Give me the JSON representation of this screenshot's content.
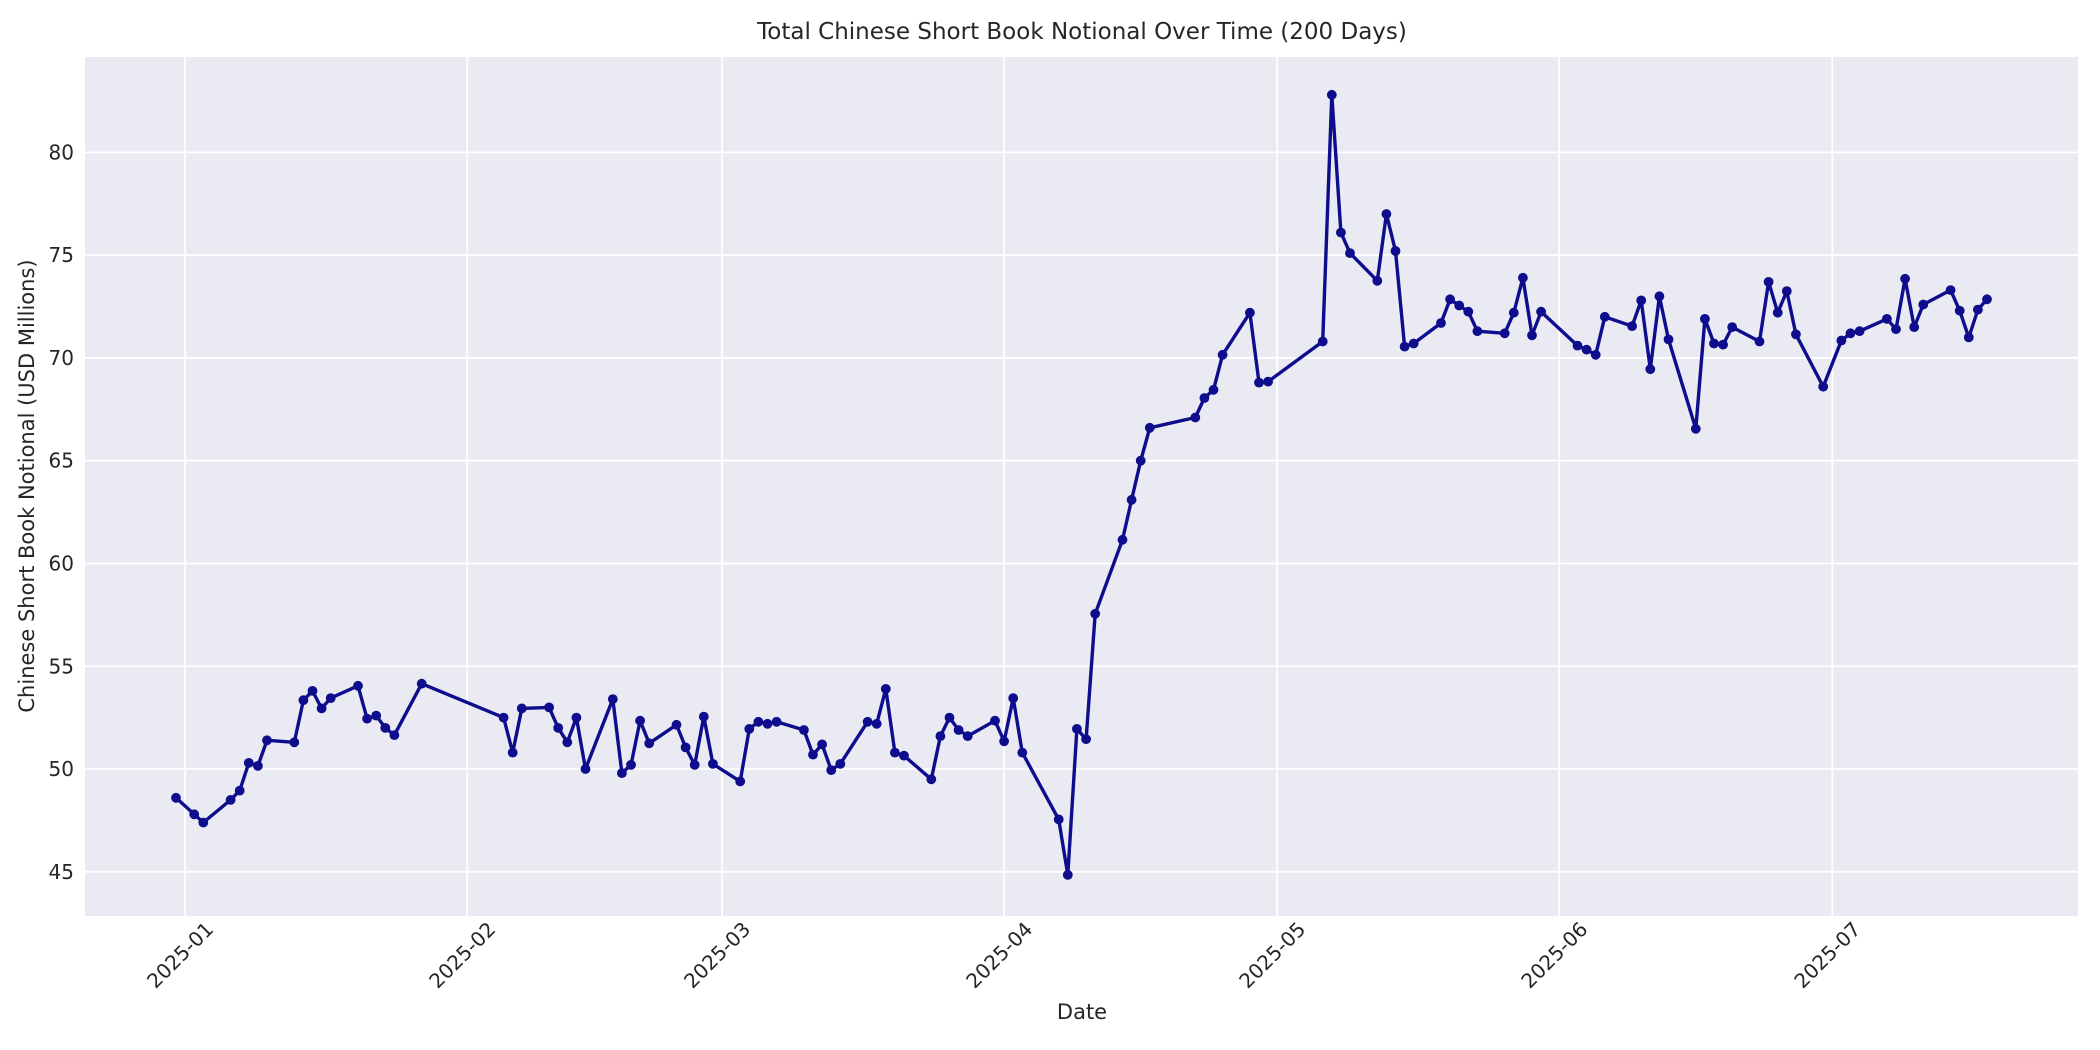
{
  "chart_data": {
    "type": "line",
    "title": "Total Chinese Short Book Notional Over Time (200 Days)",
    "xlabel": "Date",
    "ylabel": "Chinese Short Book Notional (USD Millions)",
    "legend_position": "none",
    "grid": true,
    "style": "seaborn-darkgrid",
    "plot_bg_color": "#eaeaf2",
    "gridline_color": "#ffffff",
    "line_color": "#0d0d8d",
    "marker": "circle",
    "tick_color": "#262626",
    "ylim": [
      42.85,
      84.64
    ],
    "xlim": [
      "2024-12-21",
      "2025-07-28"
    ],
    "y_ticks": [
      45,
      50,
      55,
      60,
      65,
      70,
      75,
      80
    ],
    "x_ticks": [
      {
        "date": "2025-01-01",
        "label": "2025-01"
      },
      {
        "date": "2025-02-01",
        "label": "2025-02"
      },
      {
        "date": "2025-03-01",
        "label": "2025-03"
      },
      {
        "date": "2025-04-01",
        "label": "2025-04"
      },
      {
        "date": "2025-05-01",
        "label": "2025-05"
      },
      {
        "date": "2025-06-01",
        "label": "2025-06"
      },
      {
        "date": "2025-07-01",
        "label": "2025-07"
      }
    ],
    "series": [
      {
        "name": "Total Chinese Short Book Notional",
        "points": [
          [
            "2024-12-31",
            48.6
          ],
          [
            "2025-01-02",
            47.8
          ],
          [
            "2025-01-03",
            47.4
          ],
          [
            "2025-01-06",
            48.5
          ],
          [
            "2025-01-07",
            48.95
          ],
          [
            "2025-01-08",
            50.3
          ],
          [
            "2025-01-09",
            50.15
          ],
          [
            "2025-01-10",
            51.4
          ],
          [
            "2025-01-13",
            51.3
          ],
          [
            "2025-01-14",
            53.35
          ],
          [
            "2025-01-15",
            53.8
          ],
          [
            "2025-01-16",
            52.95
          ],
          [
            "2025-01-17",
            53.45
          ],
          [
            "2025-01-20",
            54.05
          ],
          [
            "2025-01-21",
            52.45
          ],
          [
            "2025-01-22",
            52.6
          ],
          [
            "2025-01-23",
            52.0
          ],
          [
            "2025-01-24",
            51.65
          ],
          [
            "2025-01-27",
            54.15
          ],
          [
            "2025-02-05",
            52.5
          ],
          [
            "2025-02-06",
            50.8
          ],
          [
            "2025-02-07",
            52.95
          ],
          [
            "2025-02-10",
            53.0
          ],
          [
            "2025-02-11",
            52.0
          ],
          [
            "2025-02-12",
            51.3
          ],
          [
            "2025-02-13",
            52.5
          ],
          [
            "2025-02-14",
            50.0
          ],
          [
            "2025-02-17",
            53.4
          ],
          [
            "2025-02-18",
            49.8
          ],
          [
            "2025-02-19",
            50.2
          ],
          [
            "2025-02-20",
            52.35
          ],
          [
            "2025-02-21",
            51.25
          ],
          [
            "2025-02-24",
            52.15
          ],
          [
            "2025-02-25",
            51.05
          ],
          [
            "2025-02-26",
            50.2
          ],
          [
            "2025-02-27",
            52.55
          ],
          [
            "2025-02-28",
            50.25
          ],
          [
            "2025-03-03",
            49.4
          ],
          [
            "2025-03-04",
            51.95
          ],
          [
            "2025-03-05",
            52.3
          ],
          [
            "2025-03-06",
            52.2
          ],
          [
            "2025-03-07",
            52.3
          ],
          [
            "2025-03-10",
            51.9
          ],
          [
            "2025-03-11",
            50.7
          ],
          [
            "2025-03-12",
            51.2
          ],
          [
            "2025-03-13",
            49.95
          ],
          [
            "2025-03-14",
            50.25
          ],
          [
            "2025-03-17",
            52.3
          ],
          [
            "2025-03-18",
            52.2
          ],
          [
            "2025-03-19",
            53.9
          ],
          [
            "2025-03-20",
            50.8
          ],
          [
            "2025-03-21",
            50.65
          ],
          [
            "2025-03-24",
            49.5
          ],
          [
            "2025-03-25",
            51.6
          ],
          [
            "2025-03-26",
            52.5
          ],
          [
            "2025-03-27",
            51.9
          ],
          [
            "2025-03-28",
            51.6
          ],
          [
            "2025-03-31",
            52.35
          ],
          [
            "2025-04-01",
            51.35
          ],
          [
            "2025-04-02",
            53.45
          ],
          [
            "2025-04-03",
            50.8
          ],
          [
            "2025-04-07",
            47.55
          ],
          [
            "2025-04-08",
            44.85
          ],
          [
            "2025-04-09",
            51.95
          ],
          [
            "2025-04-10",
            51.45
          ],
          [
            "2025-04-11",
            57.55
          ],
          [
            "2025-04-14",
            61.15
          ],
          [
            "2025-04-15",
            63.1
          ],
          [
            "2025-04-16",
            65.0
          ],
          [
            "2025-04-17",
            66.6
          ],
          [
            "2025-04-22",
            67.1
          ],
          [
            "2025-04-23",
            68.05
          ],
          [
            "2025-04-24",
            68.45
          ],
          [
            "2025-04-25",
            70.15
          ],
          [
            "2025-04-28",
            72.2
          ],
          [
            "2025-04-29",
            68.8
          ],
          [
            "2025-04-30",
            68.85
          ],
          [
            "2025-05-06",
            70.8
          ],
          [
            "2025-05-07",
            82.8
          ],
          [
            "2025-05-08",
            76.1
          ],
          [
            "2025-05-09",
            75.1
          ],
          [
            "2025-05-12",
            73.75
          ],
          [
            "2025-05-13",
            77.0
          ],
          [
            "2025-05-14",
            75.2
          ],
          [
            "2025-05-15",
            70.55
          ],
          [
            "2025-05-16",
            70.7
          ],
          [
            "2025-05-19",
            71.7
          ],
          [
            "2025-05-20",
            72.85
          ],
          [
            "2025-05-21",
            72.55
          ],
          [
            "2025-05-22",
            72.25
          ],
          [
            "2025-05-23",
            71.3
          ],
          [
            "2025-05-26",
            71.2
          ],
          [
            "2025-05-27",
            72.2
          ],
          [
            "2025-05-28",
            73.9
          ],
          [
            "2025-05-29",
            71.1
          ],
          [
            "2025-05-30",
            72.25
          ],
          [
            "2025-06-03",
            70.6
          ],
          [
            "2025-06-04",
            70.4
          ],
          [
            "2025-06-05",
            70.15
          ],
          [
            "2025-06-06",
            72.0
          ],
          [
            "2025-06-09",
            71.55
          ],
          [
            "2025-06-10",
            72.8
          ],
          [
            "2025-06-11",
            69.45
          ],
          [
            "2025-06-12",
            73.0
          ],
          [
            "2025-06-13",
            70.9
          ],
          [
            "2025-06-16",
            66.55
          ],
          [
            "2025-06-17",
            71.9
          ],
          [
            "2025-06-18",
            70.7
          ],
          [
            "2025-06-19",
            70.65
          ],
          [
            "2025-06-20",
            71.5
          ],
          [
            "2025-06-23",
            70.8
          ],
          [
            "2025-06-24",
            73.7
          ],
          [
            "2025-06-25",
            72.2
          ],
          [
            "2025-06-26",
            73.25
          ],
          [
            "2025-06-27",
            71.15
          ],
          [
            "2025-06-30",
            68.6
          ],
          [
            "2025-07-02",
            70.85
          ],
          [
            "2025-07-03",
            71.2
          ],
          [
            "2025-07-04",
            71.3
          ],
          [
            "2025-07-07",
            71.9
          ],
          [
            "2025-07-08",
            71.4
          ],
          [
            "2025-07-09",
            73.85
          ],
          [
            "2025-07-10",
            71.5
          ],
          [
            "2025-07-11",
            72.6
          ],
          [
            "2025-07-14",
            73.3
          ],
          [
            "2025-07-15",
            72.3
          ],
          [
            "2025-07-16",
            71.0
          ],
          [
            "2025-07-17",
            72.35
          ],
          [
            "2025-07-18",
            72.85
          ]
        ]
      }
    ]
  }
}
